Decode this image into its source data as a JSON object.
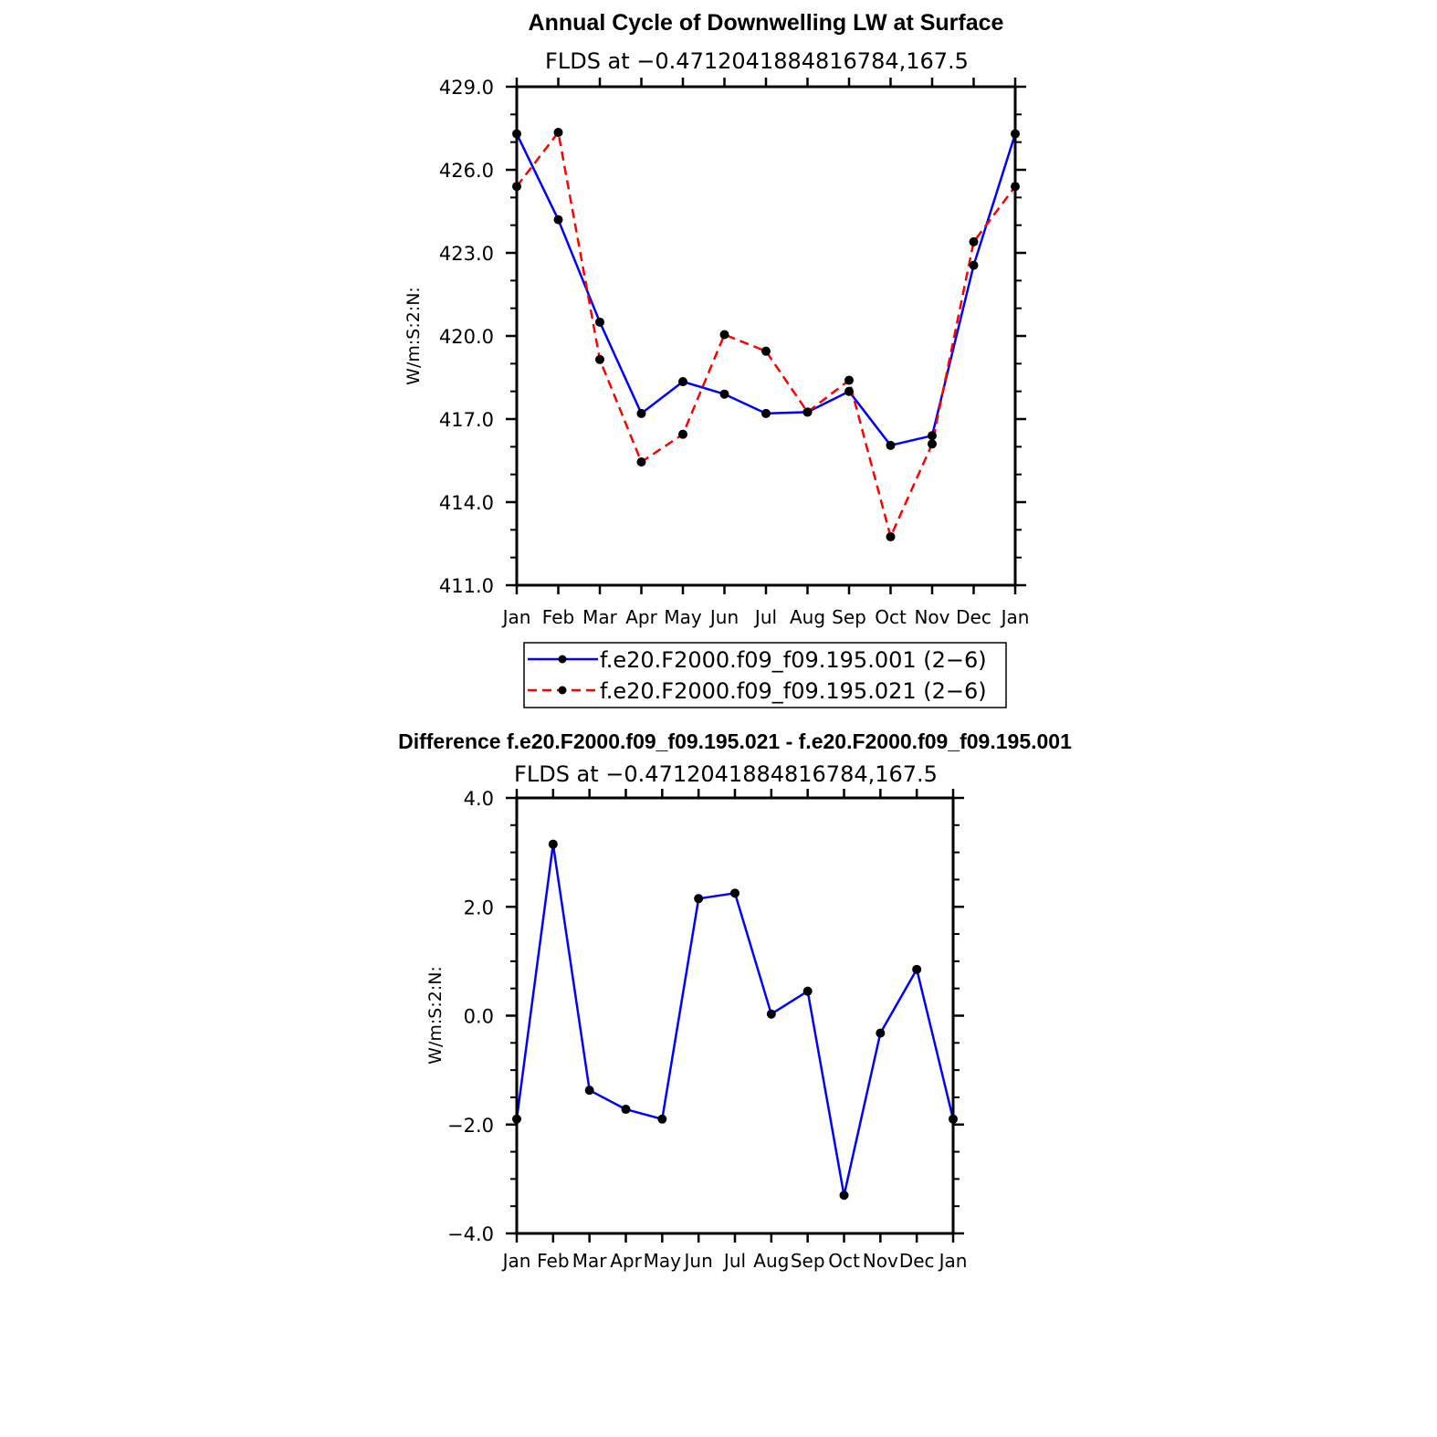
{
  "chart_data": [
    {
      "type": "line",
      "title": "Annual Cycle of Downwelling LW at Surface",
      "subtitle": "FLDS at −0.4712041884816784,167.5",
      "ylabel": "W/m:S:2:N:",
      "xlabel": "",
      "categories": [
        "Jan",
        "Feb",
        "Mar",
        "Apr",
        "May",
        "Jun",
        "Jul",
        "Aug",
        "Sep",
        "Oct",
        "Nov",
        "Dec",
        "Jan"
      ],
      "ylim": [
        411.0,
        429.0
      ],
      "yticks": [
        "411.0",
        "414.0",
        "417.0",
        "420.0",
        "423.0",
        "426.0",
        "429.0"
      ],
      "grid": false,
      "legend_position": "bottom",
      "series": [
        {
          "name": "f.e20.F2000.f09_f09.195.001 (2−6)",
          "color": "#0000ff",
          "dash": "solid",
          "values": [
            427.3,
            424.2,
            420.5,
            417.2,
            418.35,
            417.9,
            417.2,
            417.25,
            418.0,
            416.05,
            416.4,
            422.55,
            427.3
          ]
        },
        {
          "name": "f.e20.F2000.f09_f09.195.021 (2−6)",
          "color": "#ff0000",
          "dash": "dashed",
          "values": [
            425.4,
            427.35,
            419.15,
            415.45,
            416.45,
            420.05,
            419.45,
            417.25,
            418.4,
            412.75,
            416.1,
            423.4,
            425.4
          ]
        }
      ]
    },
    {
      "type": "line",
      "title": "Difference f.e20.F2000.f09_f09.195.021 - f.e20.F2000.f09_f09.195.001",
      "subtitle": "FLDS at −0.4712041884816784,167.5",
      "ylabel": "W/m:S:2:N:",
      "xlabel": "",
      "categories": [
        "Jan",
        "Feb",
        "Mar",
        "Apr",
        "May",
        "Jun",
        "Jul",
        "Aug",
        "Sep",
        "Oct",
        "Nov",
        "Dec",
        "Jan"
      ],
      "ylim": [
        -4.0,
        4.0
      ],
      "yticks": [
        "−4.0",
        "−2.0",
        "0.0",
        "2.0",
        "4.0"
      ],
      "grid": false,
      "series": [
        {
          "color": "#0000ff",
          "dash": "solid",
          "values": [
            -1.9,
            3.15,
            -1.37,
            -1.72,
            -1.9,
            2.15,
            2.25,
            0.03,
            0.45,
            -3.3,
            -0.32,
            0.85,
            -1.9
          ]
        }
      ]
    }
  ]
}
